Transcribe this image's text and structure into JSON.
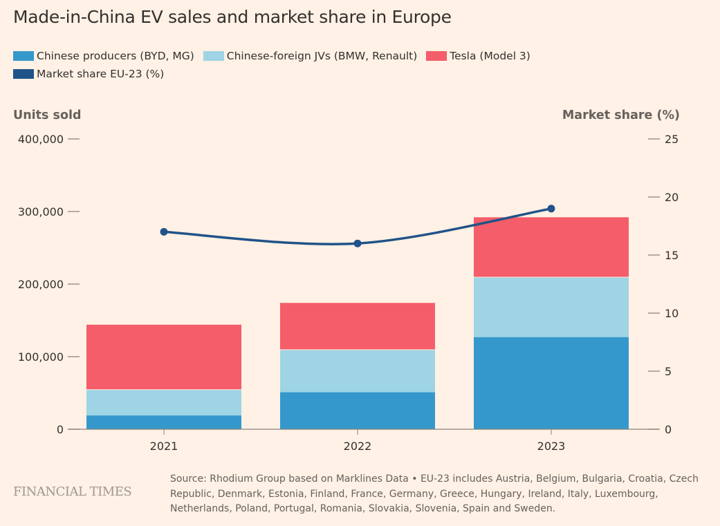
{
  "title": "Made-in-China EV sales and market share in Europe",
  "legend": [
    {
      "label": "Chinese producers (BYD, MG)",
      "color": "#3598cd"
    },
    {
      "label": "Chinese-foreign JVs (BMW, Renault)",
      "color": "#9ed4e3"
    },
    {
      "label": "Tesla (Model 3)",
      "color": "#f45d69"
    },
    {
      "label": "Market share EU-23 (%)",
      "color": "#205389"
    }
  ],
  "axes": {
    "left_title": "Units sold",
    "right_title": "Market share (%)"
  },
  "footer": {
    "logo": "FINANCIAL TIMES",
    "source": "Source: Rhodium Group based on Marklines Data • EU-23 includes Austria, Belgium, Bulgaria, Croatia, Czech Republic, Denmark, Estonia, Finland, France, Germany, Greece, Hungary, Ireland, Italy, Luxembourg, Netherlands, Poland, Portugal, Romania, Slovakia, Slovenia, Spain and Sweden."
  },
  "chart_data": {
    "type": "bar",
    "stacked": true,
    "title": "Made-in-China EV sales and market share in Europe",
    "categories": [
      "2021",
      "2022",
      "2023"
    ],
    "series": [
      {
        "name": "Chinese producers (BYD, MG)",
        "values": [
          19000,
          51000,
          127000
        ],
        "color": "#3598cd"
      },
      {
        "name": "Chinese-foreign JVs (BMW, Renault)",
        "values": [
          36000,
          59000,
          83000
        ],
        "color": "#9ed4e3"
      },
      {
        "name": "Tesla (Model 3)",
        "values": [
          90000,
          65000,
          83000
        ],
        "color": "#f45d69"
      }
    ],
    "line_series": {
      "name": "Market share EU-23 (%)",
      "type": "line",
      "axis": "right",
      "values": [
        17.0,
        16.0,
        19.0
      ],
      "color": "#205389"
    },
    "ylabel": "Units sold",
    "ylim": [
      0,
      400000
    ],
    "yticks": [
      0,
      100000,
      200000,
      300000,
      400000
    ],
    "ytick_labels": [
      "0",
      "100,000",
      "200,000",
      "300,000",
      "400,000"
    ],
    "y2label": "Market share (%)",
    "y2lim": [
      0,
      25
    ],
    "y2ticks": [
      0,
      5,
      10,
      15,
      20,
      25
    ],
    "y2tick_labels": [
      "0",
      "5",
      "10",
      "15",
      "20",
      "25"
    ],
    "xlabel": "",
    "grid": false,
    "legend_position": "top-left"
  }
}
